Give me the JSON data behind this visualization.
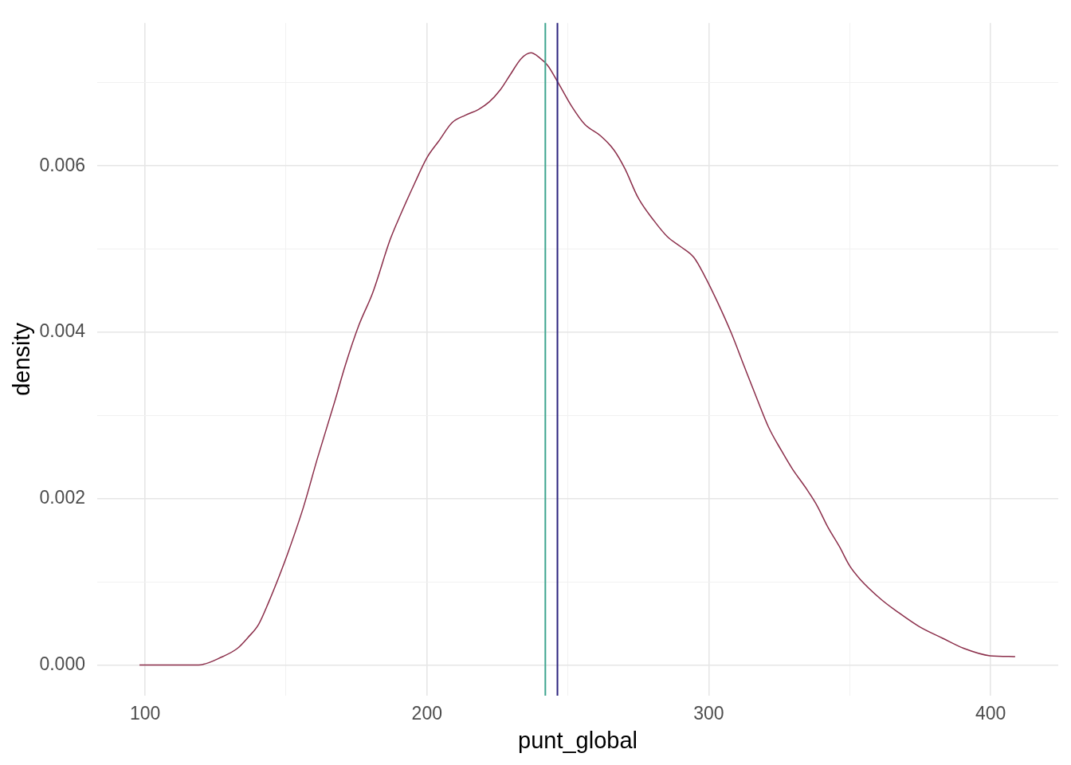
{
  "chart_data": {
    "type": "line",
    "xlabel": "punt_global",
    "ylabel": "density",
    "series": [
      {
        "color": "#8b2e4a",
        "x": [
          98,
          110,
          119,
          127.5,
          132.8,
          136.5,
          140.3,
          143.9,
          147.6,
          150.7,
          156.2,
          161.1,
          167.3,
          171,
          175.9,
          180.8,
          187,
          190.7,
          195.6,
          200,
          204.2,
          208.9,
          213.6,
          218.3,
          222.1,
          225.9,
          229.6,
          233.4,
          236.9,
          240,
          242.8,
          246.4,
          251.3,
          256,
          261.7,
          266.4,
          270.2,
          274.9,
          280.6,
          285.3,
          290,
          294.7,
          298.5,
          303,
          308,
          312.7,
          317,
          321.2,
          325.9,
          329.6,
          334.8,
          338.5,
          342.2,
          346.4,
          350,
          353.7,
          361.1,
          367.3,
          374.7,
          383,
          390.4,
          399.8,
          408.7
        ],
        "values": [
          0,
          0,
          0,
          0.0001,
          0.0002,
          0.00033,
          0.00049,
          0.00076,
          0.00107,
          0.00135,
          0.0019,
          0.00248,
          0.00317,
          0.0036,
          0.00409,
          0.00448,
          0.00512,
          0.00542,
          0.00579,
          0.0061,
          0.0063,
          0.00652,
          0.00661,
          0.00668,
          0.00677,
          0.00691,
          0.0071,
          0.00729,
          0.00736,
          0.0073,
          0.00721,
          0.00701,
          0.00672,
          0.0065,
          0.00636,
          0.00619,
          0.00597,
          0.00562,
          0.00534,
          0.00515,
          0.00503,
          0.0049,
          0.00468,
          0.00437,
          0.00399,
          0.00358,
          0.00321,
          0.00286,
          0.00257,
          0.00236,
          0.00211,
          0.00191,
          0.00166,
          0.00142,
          0.00119,
          0.00103,
          0.00079,
          0.00063,
          0.00046,
          0.00032,
          0.0002,
          0.00011,
          0.0001
        ]
      }
    ],
    "xlim": [
      83,
      424
    ],
    "xticks": [
      100,
      {
        "value": 150,
        "label": null
      },
      200,
      {
        "value": 250,
        "label": null
      },
      300,
      {
        "value": 350,
        "label": null
      },
      400
    ],
    "ylim": [
      -0.00037,
      0.00772
    ],
    "yticks": [
      {
        "value": 0,
        "label": "0.000"
      },
      {
        "value": 0.001,
        "label": null
      },
      {
        "value": 0.002,
        "label": "0.002"
      },
      {
        "value": 0.003,
        "label": null
      },
      {
        "value": 0.004,
        "label": "0.004"
      },
      {
        "value": 0.005,
        "label": null
      },
      {
        "value": 0.006,
        "label": "0.006"
      },
      {
        "value": 0.007,
        "label": null
      }
    ],
    "grid": true,
    "ref_lines": [
      {
        "axis": "x",
        "value": 242,
        "color": "#3fa58f"
      },
      {
        "axis": "x",
        "value": 246.3,
        "color": "#2c237e"
      }
    ]
  }
}
